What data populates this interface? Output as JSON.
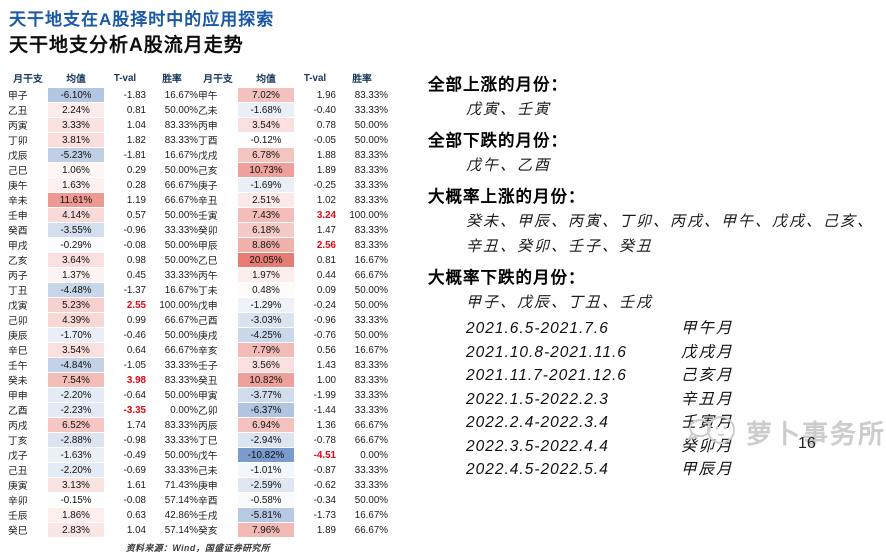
{
  "page": {
    "title": "天干地支在A股择时中的应用探索",
    "subtitle": "天干地支分析A股流月走势",
    "source": "资料来源：Wind，国盛证券研究所",
    "watermark": "萝卜事务所",
    "page_number": "16"
  },
  "table": {
    "headers": [
      "月干支",
      "均值",
      "T-val",
      "胜率"
    ],
    "style": {
      "header_color": "#17375E",
      "positive_max_color": "#E77C74",
      "negative_max_color": "#7A9BCB",
      "positive_ref": 15,
      "negative_ref": 10.82,
      "tval_red_threshold": 2.5,
      "tval_red_color": "#E30613"
    },
    "left_rows": [
      [
        "甲子",
        "-6.10%",
        "-1.83",
        "16.67%"
      ],
      [
        "乙丑",
        "2.24%",
        "0.81",
        "50.00%"
      ],
      [
        "丙寅",
        "3.33%",
        "1.04",
        "83.33%"
      ],
      [
        "丁卯",
        "3.81%",
        "1.82",
        "83.33%"
      ],
      [
        "戊辰",
        "-5.23%",
        "-1.81",
        "16.67%"
      ],
      [
        "己巳",
        "1.06%",
        "0.29",
        "50.00%"
      ],
      [
        "庚午",
        "1.63%",
        "0.28",
        "66.67%"
      ],
      [
        "辛未",
        "11.61%",
        "1.19",
        "66.67%"
      ],
      [
        "壬申",
        "4.14%",
        "0.57",
        "50.00%"
      ],
      [
        "癸酉",
        "-3.55%",
        "-0.96",
        "33.33%"
      ],
      [
        "甲戌",
        "-0.29%",
        "-0.08",
        "50.00%"
      ],
      [
        "乙亥",
        "3.64%",
        "0.98",
        "50.00%"
      ],
      [
        "丙子",
        "1.37%",
        "0.45",
        "33.33%"
      ],
      [
        "丁丑",
        "-4.48%",
        "-1.37",
        "16.67%"
      ],
      [
        "戊寅",
        "5.23%",
        "2.55",
        "100.00%"
      ],
      [
        "己卯",
        "4.39%",
        "0.99",
        "66.67%"
      ],
      [
        "庚辰",
        "-1.70%",
        "-0.46",
        "50.00%"
      ],
      [
        "辛巳",
        "3.54%",
        "0.64",
        "66.67%"
      ],
      [
        "壬午",
        "-4.84%",
        "-1.05",
        "33.33%"
      ],
      [
        "癸未",
        "7.54%",
        "3.98",
        "83.33%"
      ],
      [
        "甲申",
        "-2.20%",
        "-0.64",
        "50.00%"
      ],
      [
        "乙酉",
        "-2.23%",
        "-3.35",
        "0.00%"
      ],
      [
        "丙戌",
        "6.52%",
        "1.74",
        "83.33%"
      ],
      [
        "丁亥",
        "-2.88%",
        "-0.98",
        "33.33%"
      ],
      [
        "戊子",
        "-1.63%",
        "-0.49",
        "50.00%"
      ],
      [
        "己丑",
        "-2.20%",
        "-0.69",
        "33.33%"
      ],
      [
        "庚寅",
        "3.13%",
        "1.61",
        "71.43%"
      ],
      [
        "辛卯",
        "-0.15%",
        "-0.08",
        "57.14%"
      ],
      [
        "壬辰",
        "1.86%",
        "0.63",
        "42.86%"
      ],
      [
        "癸巳",
        "2.83%",
        "1.04",
        "57.14%"
      ]
    ],
    "right_rows": [
      [
        "甲午",
        "7.02%",
        "1.96",
        "83.33%"
      ],
      [
        "乙未",
        "-1.68%",
        "-0.40",
        "33.33%"
      ],
      [
        "丙申",
        "3.54%",
        "0.78",
        "50.00%"
      ],
      [
        "丁酉",
        "-0.12%",
        "-0.05",
        "50.00%"
      ],
      [
        "戊戌",
        "6.78%",
        "1.88",
        "83.33%"
      ],
      [
        "己亥",
        "10.73%",
        "1.89",
        "83.33%"
      ],
      [
        "庚子",
        "-1.69%",
        "-0.25",
        "33.33%"
      ],
      [
        "辛丑",
        "2.51%",
        "1.02",
        "83.33%"
      ],
      [
        "壬寅",
        "7.43%",
        "3.24",
        "100.00%"
      ],
      [
        "癸卯",
        "6.18%",
        "1.47",
        "83.33%"
      ],
      [
        "甲辰",
        "8.86%",
        "2.56",
        "83.33%"
      ],
      [
        "乙巳",
        "20.05%",
        "0.81",
        "16.67%"
      ],
      [
        "丙午",
        "1.97%",
        "0.44",
        "66.67%"
      ],
      [
        "丁未",
        "0.48%",
        "0.09",
        "50.00%"
      ],
      [
        "戊申",
        "-1.29%",
        "-0.24",
        "50.00%"
      ],
      [
        "己酉",
        "-3.03%",
        "-0.96",
        "33.33%"
      ],
      [
        "庚戌",
        "-4.25%",
        "-0.76",
        "50.00%"
      ],
      [
        "辛亥",
        "7.79%",
        "0.56",
        "16.67%"
      ],
      [
        "壬子",
        "3.56%",
        "1.43",
        "83.33%"
      ],
      [
        "癸丑",
        "10.82%",
        "1.00",
        "83.33%"
      ],
      [
        "甲寅",
        "-3.77%",
        "-1.99",
        "33.33%"
      ],
      [
        "乙卯",
        "-6.37%",
        "-1.44",
        "33.33%"
      ],
      [
        "丙辰",
        "6.94%",
        "1.36",
        "66.67%"
      ],
      [
        "丁巳",
        "-2.94%",
        "-0.78",
        "66.67%"
      ],
      [
        "戊午",
        "-10.82%",
        "-4.51",
        "0.00%"
      ],
      [
        "己未",
        "-1.01%",
        "-0.87",
        "33.33%"
      ],
      [
        "庚申",
        "-2.59%",
        "-0.62",
        "33.33%"
      ],
      [
        "辛酉",
        "-0.58%",
        "-0.34",
        "50.00%"
      ],
      [
        "壬戌",
        "-5.81%",
        "-1.73",
        "16.67%"
      ],
      [
        "癸亥",
        "7.96%",
        "1.89",
        "66.67%"
      ]
    ]
  },
  "panel": {
    "sections": [
      {
        "heading": "全部上涨的月份：",
        "lines": [
          "戊寅、壬寅"
        ]
      },
      {
        "heading": "全部下跌的月份：",
        "lines": [
          "戊午、乙酉"
        ]
      },
      {
        "heading": "大概率上涨的月份：",
        "lines": [
          "癸未、甲辰、丙寅、丁卯、丙戌、甲午、戊戌、己亥、",
          "辛丑、癸卯、壬子、癸丑"
        ]
      },
      {
        "heading": "大概率下跌的月份：",
        "lines": [
          "甲子、戊辰、丁丑、壬戌"
        ]
      }
    ],
    "date_rows": [
      {
        "range": "2021.6.5-2021.7.6",
        "month": "甲午月"
      },
      {
        "range": "2021.10.8-2021.11.6",
        "month": "戊戌月"
      },
      {
        "range": "2021.11.7-2021.12.6",
        "month": "己亥月"
      },
      {
        "range": "2022.1.5-2022.2.3",
        "month": "辛丑月"
      },
      {
        "range": "2022.2.4-2022.3.4",
        "month": "壬寅月"
      },
      {
        "range": "2022.3.5-2022.4.4",
        "month": "癸卯月"
      },
      {
        "range": "2022.4.5-2022.5.4",
        "month": "甲辰月"
      }
    ]
  }
}
